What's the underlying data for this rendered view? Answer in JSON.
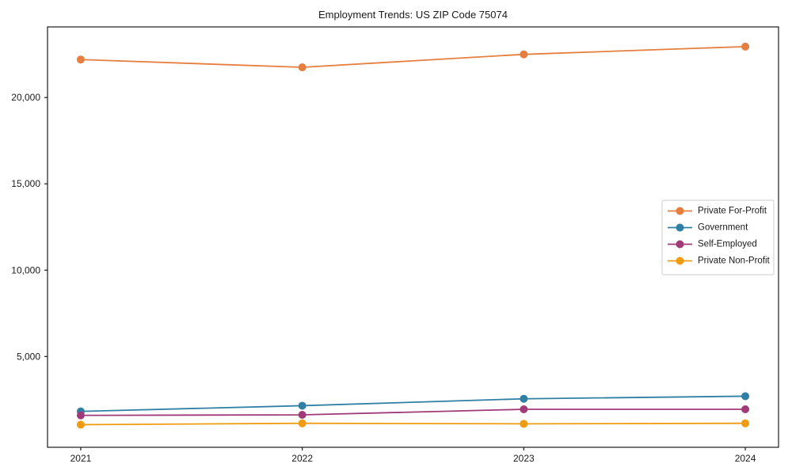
{
  "title": "Employment Trends: US ZIP Code 75074",
  "chart_data": {
    "type": "line",
    "title": "Employment Trends: US ZIP Code 75074",
    "categories": [
      2021,
      2022,
      2023,
      2024
    ],
    "xtick_labels": [
      "2021",
      "2022",
      "2023",
      "2024"
    ],
    "series": [
      {
        "name": "Private For-Profit",
        "color": "#e57e3e",
        "values": [
          22200,
          21750,
          22500,
          22950
        ]
      },
      {
        "name": "Government",
        "color": "#3080a6",
        "values": [
          1820,
          2150,
          2550,
          2700
        ]
      },
      {
        "name": "Self-Employed",
        "color": "#a03a78",
        "values": [
          1590,
          1620,
          1940,
          1940
        ]
      },
      {
        "name": "Private Non-Profit",
        "color": "#f09c13",
        "values": [
          1050,
          1130,
          1100,
          1130
        ]
      }
    ],
    "yticks": [
      5000,
      10000,
      15000,
      20000
    ],
    "ytick_labels": [
      "5,000",
      "10,000",
      "15,000",
      "20,000"
    ],
    "ylim": [
      -260,
      24090
    ],
    "xlabel": "",
    "ylabel": "",
    "legend_position": "center right",
    "grid": false,
    "marker": "o"
  },
  "style": {
    "background": "#ffffff",
    "text_color": "#1a1a1a",
    "spine_color": "#1a1a1a",
    "legend_border_color": "#cccccc",
    "legend_background": "#ffffff"
  }
}
